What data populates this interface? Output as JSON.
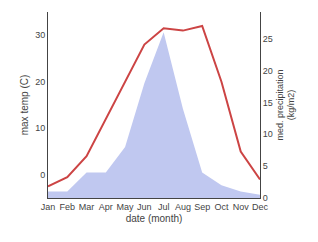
{
  "chart_data": {
    "type": "line",
    "xlabel": "date (month)",
    "ylabel": "max temp (C)",
    "y2label": "med. precipitation\n(kg/m2)",
    "categories": [
      "Jan",
      "Feb",
      "Mar",
      "Apr",
      "May",
      "Jun",
      "Jul",
      "Aug",
      "Sep",
      "Oct",
      "Nov",
      "Dec"
    ],
    "series": [
      {
        "type": "area",
        "color": "#c0c8f0",
        "axis": "y2",
        "values": [
          1,
          1,
          4,
          4,
          8,
          18,
          26,
          14,
          4,
          2,
          1,
          0.5
        ]
      },
      {
        "type": "line",
        "color": "#cc4444",
        "values": [
          -2.5,
          -0.5,
          4,
          12,
          20,
          28,
          31.5,
          31,
          32,
          20,
          5,
          -1
        ]
      }
    ],
    "ylim": [
      -5,
      35
    ],
    "yticks": [
      0,
      10,
      20,
      30
    ],
    "y2lim": [
      0,
      29.17
    ],
    "y2ticks": [
      0,
      5,
      10,
      15,
      20,
      25
    ],
    "grid": false
  }
}
